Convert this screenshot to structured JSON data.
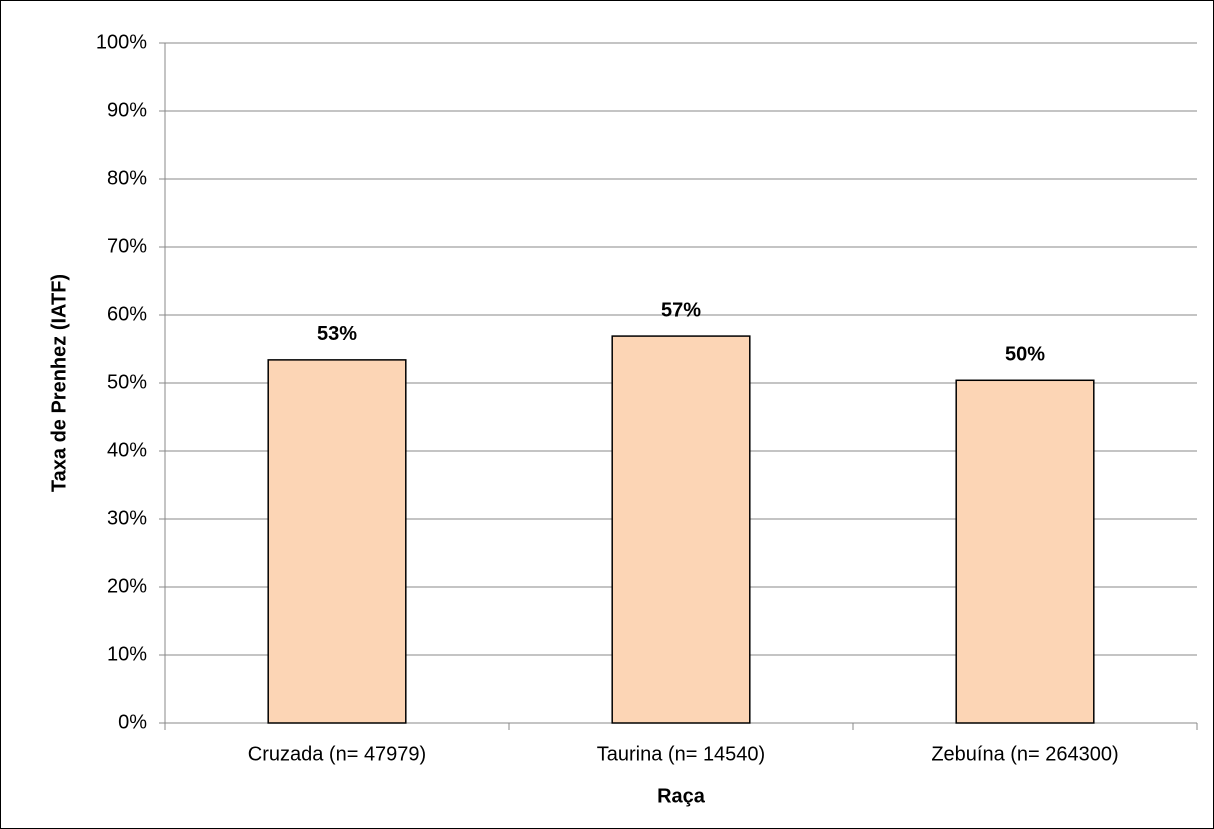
{
  "chart_data": {
    "type": "bar",
    "x_label": "Raça",
    "y_label": "Taxa de Prenhez (IATF)",
    "categories": [
      "Cruzada (n= 47979)",
      "Taurina (n= 14540)",
      "Zebuína (n= 264300)"
    ],
    "values": [
      53.4,
      56.9,
      50.4
    ],
    "value_labels": [
      "53%",
      "57%",
      "50%"
    ],
    "color": "#fcd5b5",
    "ylim": [
      0,
      100
    ],
    "yticks": [
      {
        "value": 0,
        "label": "0%"
      },
      {
        "value": 10,
        "label": "10%"
      },
      {
        "value": 20,
        "label": "20%"
      },
      {
        "value": 30,
        "label": "30%"
      },
      {
        "value": 40,
        "label": "40%"
      },
      {
        "value": 50,
        "label": "50%"
      },
      {
        "value": 60,
        "label": "60%"
      },
      {
        "value": 70,
        "label": "70%"
      },
      {
        "value": 80,
        "label": "80%"
      },
      {
        "value": 90,
        "label": "90%"
      },
      {
        "value": 100,
        "label": "100%"
      }
    ],
    "grid": true
  }
}
